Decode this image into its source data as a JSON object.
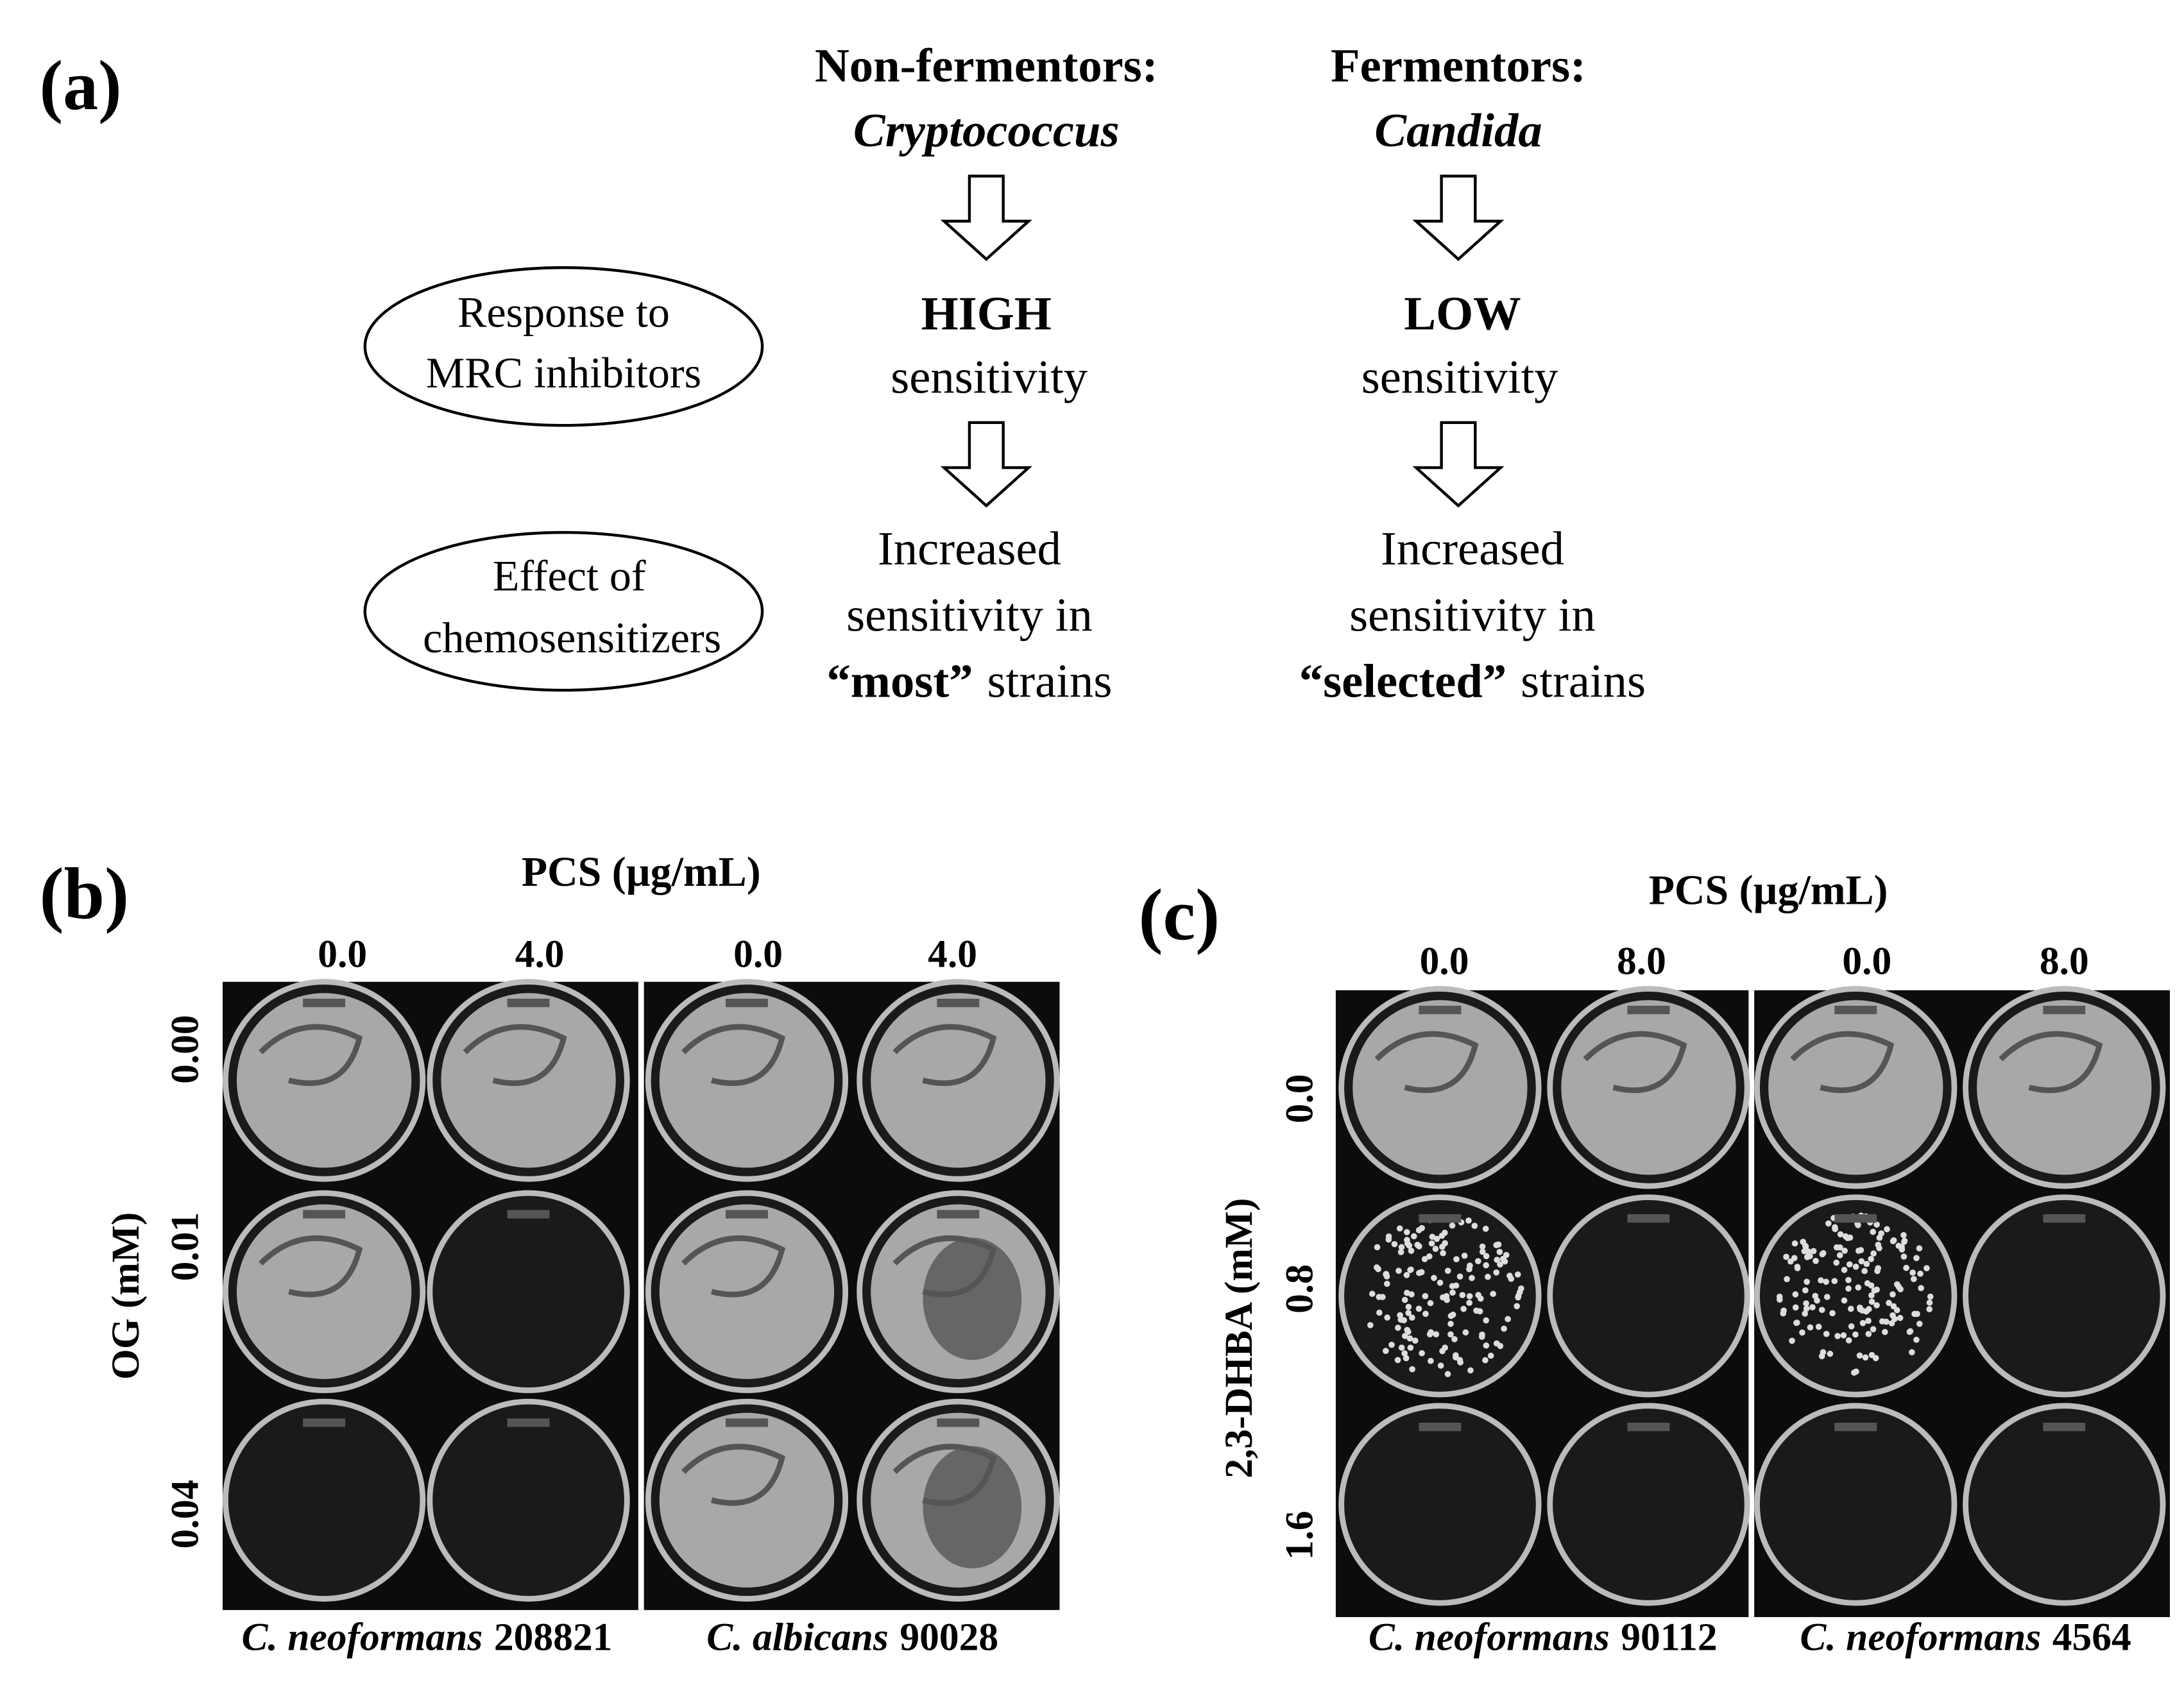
{
  "panel_a": {
    "label": "(a)",
    "columns": [
      {
        "group": "Non-fermentors:",
        "genus": "Cryptococcus",
        "level": "HIGH",
        "level_text": "sensitivity",
        "effect_line1": "Increased",
        "effect_line2": "sensitivity in",
        "effect_bold": "“most”",
        "effect_rest": "strains"
      },
      {
        "group": "Fermentors:",
        "genus": "Candida",
        "level": "LOW",
        "level_text": "sensitivity",
        "effect_line1": "Increased",
        "effect_line2": "sensitivity in",
        "effect_bold": "“selected”",
        "effect_rest": "strains"
      }
    ],
    "row_labels": [
      {
        "line1": "Response to",
        "line2": "MRC inhibitors"
      },
      {
        "line1": "Effect of",
        "line2": "chemosensitizers"
      }
    ]
  },
  "panel_b": {
    "label": "(b)",
    "x_title": "PCS (µg/mL)",
    "x_labels": [
      "0.0",
      "4.0",
      "0.0",
      "4.0"
    ],
    "y_title": "OG (mM)",
    "y_labels": [
      "0.00",
      "0.01",
      "0.04"
    ],
    "strains": [
      {
        "species": "C. neoformans",
        "id": "208821"
      },
      {
        "species": "C. albicans",
        "id": "90028"
      }
    ]
  },
  "panel_c": {
    "label": "(c)",
    "x_title": "PCS (µg/mL)",
    "x_labels": [
      "0.0",
      "8.0",
      "0.0",
      "8.0"
    ],
    "y_title": "2,3-DHBA (mM)",
    "y_labels": [
      "0.0",
      "0.8",
      "1.6"
    ],
    "strains": [
      {
        "species": "C. neoformans",
        "id": "90112"
      },
      {
        "species": "C. neoformans",
        "id": "4564"
      }
    ]
  }
}
